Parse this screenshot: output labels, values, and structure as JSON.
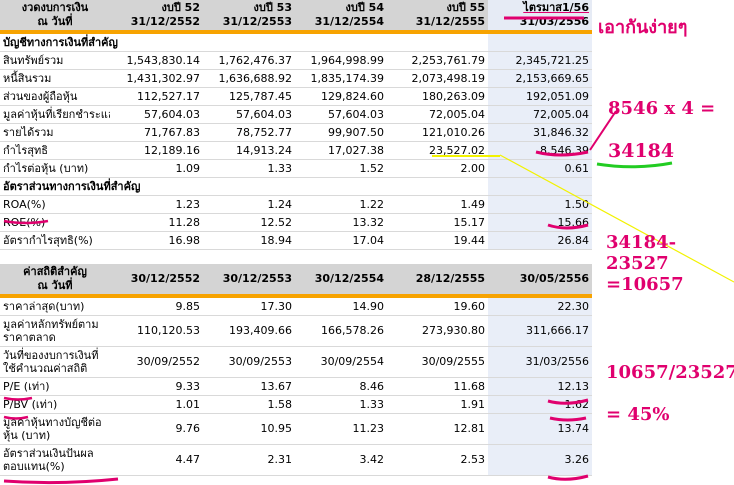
{
  "table1": {
    "header": {
      "label1": "งวดงบการเงิน",
      "label2": "ณ วันที่",
      "cols": [
        {
          "l1": "งบปี 52",
          "l2": "31/12/2552"
        },
        {
          "l1": "งบปี 53",
          "l2": "31/12/2553"
        },
        {
          "l1": "งบปี 54",
          "l2": "31/12/2554"
        },
        {
          "l1": "งบปี 55",
          "l2": "31/12/2555"
        },
        {
          "l1": "ไตรมาส1/56",
          "l2": "31/03/2556"
        }
      ]
    },
    "section1": "บัญชีทางการเงินที่สำคัญ",
    "rows1": [
      {
        "label": "สินทรัพย์รวม",
        "values": [
          "1,543,830.14",
          "1,762,476.37",
          "1,964,998.99",
          "2,253,761.79",
          "2,345,721.25"
        ]
      },
      {
        "label": "หนี้สินรวม",
        "values": [
          "1,431,302.97",
          "1,636,688.92",
          "1,835,174.39",
          "2,073,498.19",
          "2,153,669.65"
        ]
      },
      {
        "label": "ส่วนของผู้ถือหุ้น",
        "values": [
          "112,527.17",
          "125,787.45",
          "129,824.60",
          "180,263.09",
          "192,051.09"
        ]
      },
      {
        "label": "มูลค่าหุ้นที่เรียกชำระแล้ว",
        "values": [
          "57,604.03",
          "57,604.03",
          "57,604.03",
          "72,005.04",
          "72,005.04"
        ]
      },
      {
        "label": "รายได้รวม",
        "values": [
          "71,767.83",
          "78,752.77",
          "99,907.50",
          "121,010.26",
          "31,846.32"
        ]
      },
      {
        "label": "กำไรสุทธิ",
        "values": [
          "12,189.16",
          "14,913.24",
          "17,027.38",
          "23,527.02",
          "8,546.39"
        ]
      },
      {
        "label": "กำไรต่อหุ้น (บาท)",
        "values": [
          "1.09",
          "1.33",
          "1.52",
          "2.00",
          "0.61"
        ]
      }
    ],
    "section2": "อัตราส่วนทางการเงินที่สำคัญ",
    "rows2": [
      {
        "label": "ROA(%)",
        "values": [
          "1.23",
          "1.24",
          "1.22",
          "1.49",
          "1.50"
        ]
      },
      {
        "label": "ROE(%)",
        "values": [
          "11.28",
          "12.52",
          "13.32",
          "15.17",
          "15.66"
        ]
      },
      {
        "label": "อัตรากำไรสุทธิ(%)",
        "values": [
          "16.98",
          "18.94",
          "17.04",
          "19.44",
          "26.84"
        ]
      }
    ]
  },
  "table2": {
    "header": {
      "label1": "ค่าสถิติสำคัญ",
      "label2": "ณ วันที่",
      "cols": [
        "30/12/2552",
        "30/12/2553",
        "30/12/2554",
        "28/12/2555",
        "30/05/2556"
      ]
    },
    "rows": [
      {
        "label": "ราคาล่าสุด(บาท)",
        "values": [
          "9.85",
          "17.30",
          "14.90",
          "19.60",
          "22.30"
        ]
      },
      {
        "label": "มูลค่าหลักทรัพย์ตามราคาตลาด",
        "values": [
          "110,120.53",
          "193,409.66",
          "166,578.26",
          "273,930.80",
          "311,666.17"
        ]
      },
      {
        "label": "วันที่ของงบการเงินที่ใช้คำนวณค่าสถิติ",
        "values": [
          "30/09/2552",
          "30/09/2553",
          "30/09/2554",
          "30/09/2555",
          "31/03/2556"
        ]
      },
      {
        "label": "P/E (เท่า)",
        "values": [
          "9.33",
          "13.67",
          "8.46",
          "11.68",
          "12.13"
        ]
      },
      {
        "label": "P/BV (เท่า)",
        "values": [
          "1.01",
          "1.58",
          "1.33",
          "1.91",
          "1.62"
        ]
      },
      {
        "label": "มูลค่าหุ้นทางบัญชีต่อหุ้น (บาท)",
        "values": [
          "9.76",
          "10.95",
          "11.23",
          "12.81",
          "13.74"
        ]
      },
      {
        "label": "อัตราส่วนเงินปันผลตอบแทน(%)",
        "values": [
          "4.47",
          "2.31",
          "3.42",
          "2.53",
          "3.26"
        ]
      }
    ]
  },
  "annotations": {
    "easy": "เอากันง่ายๆ",
    "calc1": "8546 x 4 =",
    "result1": "34184",
    "calc2": "34184-23527",
    "result2": "=10657",
    "calc3": "10657/23527",
    "result3": "= 45%"
  },
  "colors": {
    "header_bg": "#d4d4d4",
    "accent_bar": "#f7a300",
    "highlight_col": "#e9eef8",
    "annotation": "#e0006e",
    "underline_green": "#22cc22",
    "line_yellow": "#f2f200"
  }
}
